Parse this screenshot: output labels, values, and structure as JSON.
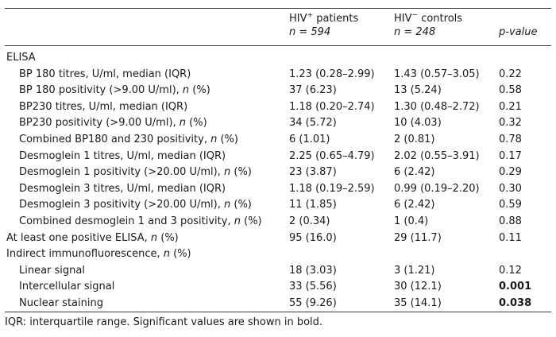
{
  "header": {
    "hiv_pos_label": "HIV",
    "hiv_pos_sup": "+",
    "hiv_pos_suffix": " patients",
    "hiv_pos_n": "n = 594",
    "hiv_neg_label": "HIV",
    "hiv_neg_sup": "−",
    "hiv_neg_suffix": " controls",
    "hiv_neg_n": "n = 248",
    "pvalue_label": "p-value"
  },
  "rows": [
    {
      "label": "ELISA",
      "pos": "",
      "neg": "",
      "p": "",
      "indent": false,
      "bold": false
    },
    {
      "label": "BP 180 titres, U/ml, median (IQR)",
      "pos": "1.23 (0.28–2.99)",
      "neg": "1.43 (0.57–3.05)",
      "p": "0.22",
      "indent": true,
      "bold": false
    },
    {
      "label": "BP 180 positivity (>9.00 U/ml), n (%)",
      "pos": "37 (6.23)",
      "neg": "13 (5.24)",
      "p": "0.58",
      "indent": true,
      "bold": false
    },
    {
      "label": "BP230 titres, U/ml, median (IQR)",
      "pos": "1.18 (0.20–2.74)",
      "neg": "1.30 (0.48–2.72)",
      "p": "0.21",
      "indent": true,
      "bold": false
    },
    {
      "label": "BP230 positivity (>9.00 U/ml), n (%)",
      "pos": "34 (5.72)",
      "neg": "10 (4.03)",
      "p": "0.32",
      "indent": true,
      "bold": false
    },
    {
      "label": "Combined BP180 and 230 positivity, n (%)",
      "pos": "6 (1.01)",
      "neg": "2 (0.81)",
      "p": "0.78",
      "indent": true,
      "bold": false
    },
    {
      "label": "Desmoglein 1 titres, U/ml, median (IQR)",
      "pos": "2.25 (0.65–4.79)",
      "neg": "2.02 (0.55–3.91)",
      "p": "0.17",
      "indent": true,
      "bold": false
    },
    {
      "label": "Desmoglein 1 positivity (>20.00 U/ml), n (%)",
      "pos": "23 (3.87)",
      "neg": "6 (2.42)",
      "p": "0.29",
      "indent": true,
      "bold": false
    },
    {
      "label": "Desmoglein 3 titres, U/ml, median (IQR)",
      "pos": "1.18 (0.19–2.59)",
      "neg": "0.99 (0.19–2.20)",
      "p": "0.30",
      "indent": true,
      "bold": false
    },
    {
      "label": "Desmoglein 3 positivity (>20.00 U/ml), n (%)",
      "pos": "11 (1.85)",
      "neg": "6 (2.42)",
      "p": "0.59",
      "indent": true,
      "bold": false
    },
    {
      "label": "Combined desmoglein 1 and 3 positivity, n (%)",
      "pos": "2 (0.34)",
      "neg": "1 (0.4)",
      "p": "0.88",
      "indent": true,
      "bold": false
    },
    {
      "label": "At least one positive ELISA, n (%)",
      "pos": "95 (16.0)",
      "neg": "29 (11.7)",
      "p": "0.11",
      "indent": false,
      "bold": false
    },
    {
      "label": "Indirect immunofluorescence, n (%)",
      "pos": "",
      "neg": "",
      "p": "",
      "indent": false,
      "bold": false
    },
    {
      "label": "Linear signal",
      "pos": "18 (3.03)",
      "neg": "3 (1.21)",
      "p": "0.12",
      "indent": true,
      "bold": false
    },
    {
      "label": "Intercellular signal",
      "pos": "33 (5.56)",
      "neg": "30 (12.1)",
      "p": "0.001",
      "indent": true,
      "bold": true
    },
    {
      "label": "Nuclear staining",
      "pos": "55 (9.26)",
      "neg": "35 (14.1)",
      "p": "0.038",
      "indent": true,
      "bold": true
    }
  ],
  "footnote": "IQR: interquartile range. Significant values are shown in bold."
}
